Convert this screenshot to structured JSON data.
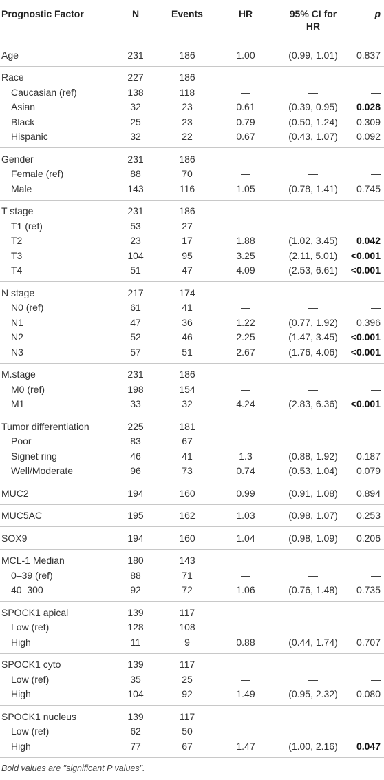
{
  "table": {
    "headers": [
      "Prognostic Factor",
      "N",
      "Events",
      "HR",
      "95% CI for HR",
      "p"
    ],
    "groups": [
      {
        "rows": [
          {
            "cells": [
              "Age",
              "231",
              "186",
              "1.00",
              "(0.99, 1.01)",
              "0.837"
            ]
          }
        ]
      },
      {
        "rows": [
          {
            "cells": [
              "Race",
              "227",
              "186",
              null,
              null,
              null
            ]
          },
          {
            "cells": [
              "Caucasian (ref)",
              "138",
              "118",
              "—",
              "—",
              "—"
            ]
          },
          {
            "cells": [
              "Asian",
              "32",
              "23",
              "0.61",
              "(0.39, 0.95)",
              "0.028"
            ],
            "bold_p": true
          },
          {
            "cells": [
              "Black",
              "25",
              "23",
              "0.79",
              "(0.50, 1.24)",
              "0.309"
            ]
          },
          {
            "cells": [
              "Hispanic",
              "32",
              "22",
              "0.67",
              "(0.43, 1.07)",
              "0.092"
            ]
          }
        ]
      },
      {
        "rows": [
          {
            "cells": [
              "Gender",
              "231",
              "186",
              null,
              null,
              null
            ]
          },
          {
            "cells": [
              "Female (ref)",
              "88",
              "70",
              "—",
              "—",
              "—"
            ]
          },
          {
            "cells": [
              "Male",
              "143",
              "116",
              "1.05",
              "(0.78, 1.41)",
              "0.745"
            ]
          }
        ]
      },
      {
        "rows": [
          {
            "cells": [
              "T stage",
              "231",
              "186",
              null,
              null,
              null
            ]
          },
          {
            "cells": [
              "T1 (ref)",
              "53",
              "27",
              "—",
              "—",
              "—"
            ]
          },
          {
            "cells": [
              "T2",
              "23",
              "17",
              "1.88",
              "(1.02, 3.45)",
              "0.042"
            ],
            "bold_p": true
          },
          {
            "cells": [
              "T3",
              "104",
              "95",
              "3.25",
              "(2.11, 5.01)",
              "<0.001"
            ],
            "bold_p": true
          },
          {
            "cells": [
              "T4",
              "51",
              "47",
              "4.09",
              "(2.53, 6.61)",
              "<0.001"
            ],
            "bold_p": true
          }
        ]
      },
      {
        "rows": [
          {
            "cells": [
              "N stage",
              "217",
              "174",
              null,
              null,
              null
            ]
          },
          {
            "cells": [
              "N0 (ref)",
              "61",
              "41",
              "—",
              "—",
              "—"
            ]
          },
          {
            "cells": [
              "N1",
              "47",
              "36",
              "1.22",
              "(0.77, 1.92)",
              "0.396"
            ]
          },
          {
            "cells": [
              "N2",
              "52",
              "46",
              "2.25",
              "(1.47, 3.45)",
              "<0.001"
            ],
            "bold_p": true
          },
          {
            "cells": [
              "N3",
              "57",
              "51",
              "2.67",
              "(1.76, 4.06)",
              "<0.001"
            ],
            "bold_p": true
          }
        ]
      },
      {
        "rows": [
          {
            "cells": [
              "M.stage",
              "231",
              "186",
              null,
              null,
              null
            ]
          },
          {
            "cells": [
              "M0 (ref)",
              "198",
              "154",
              "—",
              "—",
              "—"
            ]
          },
          {
            "cells": [
              "M1",
              "33",
              "32",
              "4.24",
              "(2.83, 6.36)",
              "<0.001"
            ],
            "bold_p": true
          }
        ]
      },
      {
        "rows": [
          {
            "cells": [
              "Tumor differentiation",
              "225",
              "181",
              null,
              null,
              null
            ]
          },
          {
            "cells": [
              "Poor",
              "83",
              "67",
              "—",
              "—",
              "—"
            ]
          },
          {
            "cells": [
              "Signet ring",
              "46",
              "41",
              "1.3",
              "(0.88, 1.92)",
              "0.187"
            ]
          },
          {
            "cells": [
              "Well/Moderate",
              "96",
              "73",
              "0.74",
              "(0.53, 1.04)",
              "0.079"
            ]
          }
        ]
      },
      {
        "rows": [
          {
            "cells": [
              "MUC2",
              "194",
              "160",
              "0.99",
              "(0.91, 1.08)",
              "0.894"
            ]
          }
        ]
      },
      {
        "rows": [
          {
            "cells": [
              "MUC5AC",
              "195",
              "162",
              "1.03",
              "(0.98, 1.07)",
              "0.253"
            ]
          }
        ]
      },
      {
        "rows": [
          {
            "cells": [
              "SOX9",
              "194",
              "160",
              "1.04",
              "(0.98, 1.09)",
              "0.206"
            ]
          }
        ]
      },
      {
        "rows": [
          {
            "cells": [
              "MCL-1 Median",
              "180",
              "143",
              null,
              null,
              null
            ]
          },
          {
            "cells": [
              "0–39 (ref)",
              "88",
              "71",
              "—",
              "—",
              "—"
            ]
          },
          {
            "cells": [
              "40–300",
              "92",
              "72",
              "1.06",
              "(0.76, 1.48)",
              "0.735"
            ]
          }
        ]
      },
      {
        "rows": [
          {
            "cells": [
              "SPOCK1 apical",
              "139",
              "117",
              null,
              null,
              null
            ]
          },
          {
            "cells": [
              "Low (ref)",
              "128",
              "108",
              "—",
              "—",
              "—"
            ]
          },
          {
            "cells": [
              "High",
              "11",
              "9",
              "0.88",
              "(0.44, 1.74)",
              "0.707"
            ]
          }
        ]
      },
      {
        "rows": [
          {
            "cells": [
              "SPOCK1 cyto",
              "139",
              "117",
              null,
              null,
              null
            ]
          },
          {
            "cells": [
              "Low (ref)",
              "35",
              "25",
              "—",
              "—",
              "—"
            ]
          },
          {
            "cells": [
              "High",
              "104",
              "92",
              "1.49",
              "(0.95, 2.32)",
              "0.080"
            ]
          }
        ]
      },
      {
        "rows": [
          {
            "cells": [
              "SPOCK1 nucleus",
              "139",
              "117",
              null,
              null,
              null
            ]
          },
          {
            "cells": [
              "Low (ref)",
              "62",
              "50",
              "—",
              "—",
              "—"
            ]
          },
          {
            "cells": [
              "High",
              "77",
              "67",
              "1.47",
              "(1.00, 2.16)",
              "0.047"
            ],
            "bold_p": true
          }
        ]
      }
    ],
    "footnote": "Bold values are \"significant P values\"."
  }
}
